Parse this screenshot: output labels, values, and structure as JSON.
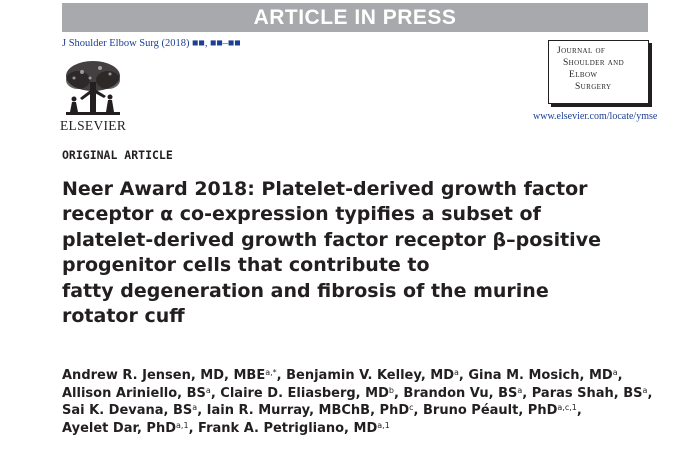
{
  "banner": {
    "text": "ARTICLE IN PRESS"
  },
  "citation": {
    "text": "J Shoulder Elbow Surg (2018) ■■, ■■–■■"
  },
  "publisher": {
    "name": "ELSEVIER"
  },
  "journal": {
    "lines": [
      "Journal of",
      "Shoulder and",
      "Elbow",
      "Surgery"
    ],
    "url": "www.elsevier.com/locate/ymse"
  },
  "article_type": "ORIGINAL ARTICLE",
  "title_lines": [
    "Neer Award 2018: Platelet-derived growth factor",
    "receptor α co-expression typifies a subset of",
    "platelet-derived growth factor receptor β–positive",
    "progenitor cells that contribute to",
    "fatty degeneration and fibrosis of the murine",
    "rotator cuff"
  ],
  "authors": [
    {
      "name": "Andrew R. Jensen, MD, MBE",
      "sup": "a,*",
      "sep": ", "
    },
    {
      "name": "Benjamin V. Kelley, MD",
      "sup": "a",
      "sep": ", "
    },
    {
      "name": "Gina M. Mosich, MD",
      "sup": "a",
      "sep": ","
    },
    {
      "name": "Allison Ariniello, BS",
      "sup": "a",
      "sep": ", "
    },
    {
      "name": "Claire D. Eliasberg, MD",
      "sup": "b",
      "sep": ", "
    },
    {
      "name": "Brandon Vu, BS",
      "sup": "a",
      "sep": ", "
    },
    {
      "name": "Paras Shah, BS",
      "sup": "a",
      "sep": ","
    },
    {
      "name": "Sai K. Devana, BS",
      "sup": "a",
      "sep": ", "
    },
    {
      "name": "Iain R. Murray, MBChB, PhD",
      "sup": "c",
      "sep": ", "
    },
    {
      "name": "Bruno Péault, PhD",
      "sup": "a,c,1",
      "sep": ","
    },
    {
      "name": "Ayelet Dar, PhD",
      "sup": "a,1",
      "sep": ", "
    },
    {
      "name": "Frank A. Petrigliano, MD",
      "sup": "a,1",
      "sep": ""
    }
  ],
  "colors": {
    "banner_bg": "#a7a9ac",
    "link_blue": "#1c3f94",
    "text": "#231f20"
  }
}
